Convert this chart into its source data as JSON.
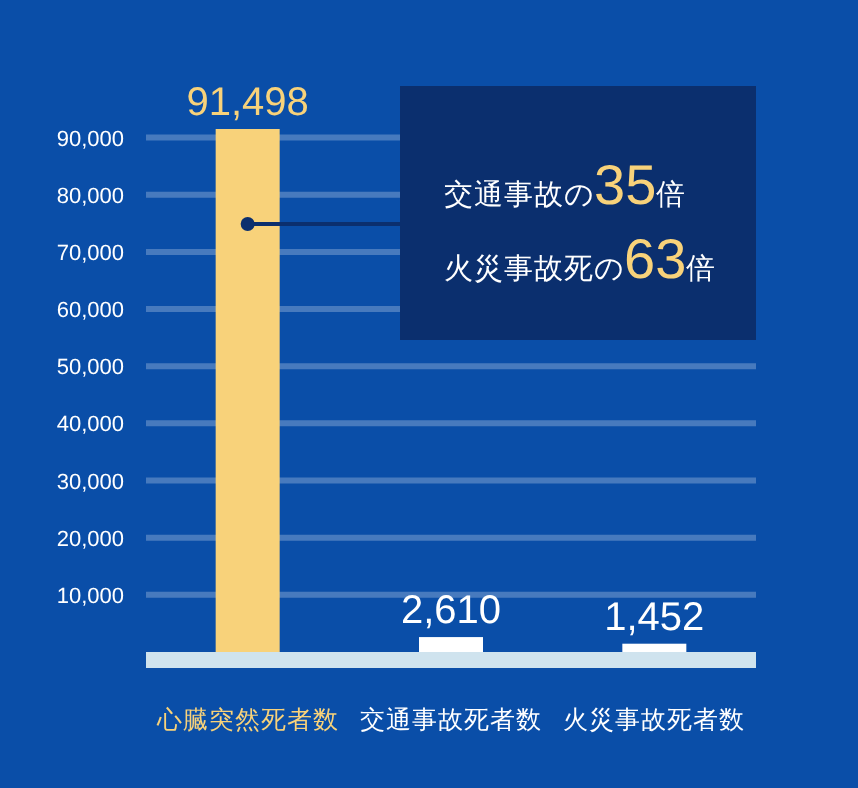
{
  "chart_data": {
    "type": "bar",
    "categories": [
      "心臓突然死者数",
      "交通事故死者数",
      "火災事故死者数"
    ],
    "values": [
      91498,
      2610,
      1452
    ],
    "colors": [
      "#f8d27a",
      "#ffffff",
      "#ffffff"
    ],
    "ylim": [
      0,
      91498
    ],
    "value_labels": [
      "91,498",
      "2,610",
      "1,452"
    ],
    "yticks": [
      {
        "value": 10000,
        "label": "10,000"
      },
      {
        "value": 20000,
        "label": "20,000"
      },
      {
        "value": 30000,
        "label": "30,000"
      },
      {
        "value": 40000,
        "label": "40,000"
      },
      {
        "value": 50000,
        "label": "50,000"
      },
      {
        "value": 60000,
        "label": "60,000"
      },
      {
        "value": 70000,
        "label": "70,000"
      },
      {
        "value": 80000,
        "label": "80,000"
      },
      {
        "value": 90000,
        "label": "90,000"
      }
    ],
    "grid": "y",
    "annotations": [
      "交通事故の35倍",
      "火災事故死の63倍"
    ]
  }
}
